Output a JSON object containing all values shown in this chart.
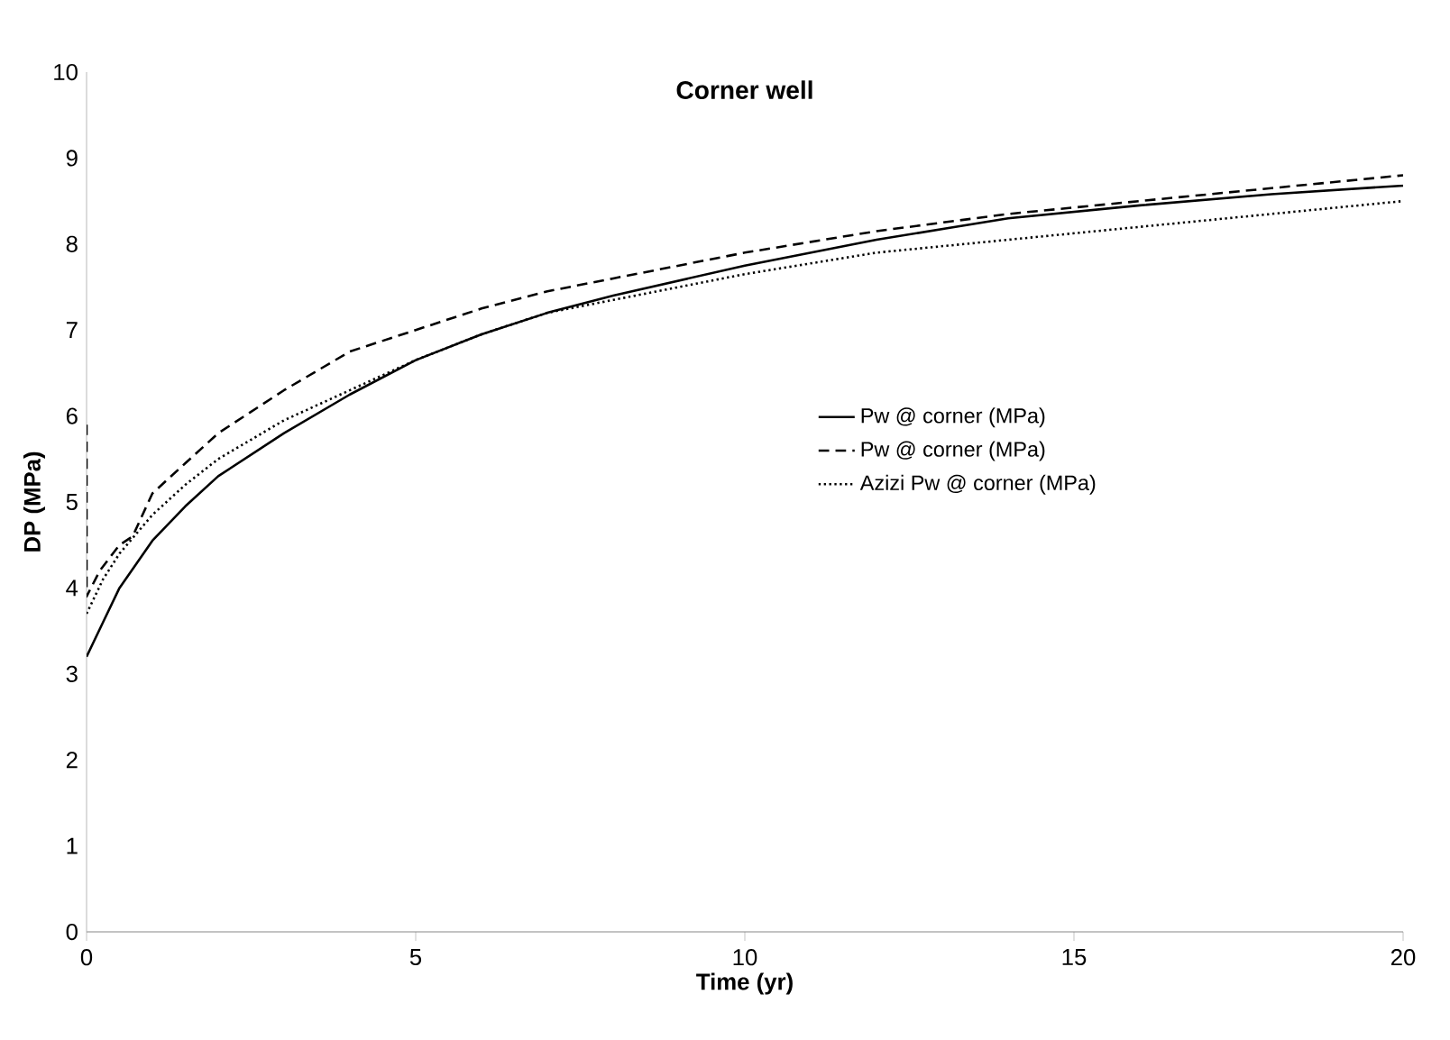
{
  "chart_data": {
    "type": "line",
    "title": "Corner well",
    "xlabel": "Time (yr)",
    "ylabel": "DP (MPa)",
    "xlim": [
      0,
      20
    ],
    "ylim": [
      0,
      10
    ],
    "xticks": [
      0,
      5,
      10,
      15,
      20
    ],
    "yticks": [
      0,
      1,
      2,
      3,
      4,
      5,
      6,
      7,
      8,
      9,
      10
    ],
    "grid": false,
    "legend": "right",
    "marker": "none",
    "series": [
      {
        "name": "Pw @ corner (MPa)",
        "color": "#000000",
        "line_style": "solid",
        "x": [
          0,
          0.25,
          0.5,
          1,
          1.5,
          2,
          3,
          4,
          5,
          6,
          7,
          8,
          10,
          12,
          14,
          16,
          18,
          20
        ],
        "values": [
          3.2,
          3.6,
          4.0,
          4.55,
          4.95,
          5.3,
          5.8,
          6.25,
          6.65,
          6.95,
          7.2,
          7.4,
          7.75,
          8.05,
          8.3,
          8.45,
          8.58,
          8.68
        ]
      },
      {
        "name": "Pw @ corner (MPa)",
        "color": "#000000",
        "line_style": "dashed",
        "x": [
          0,
          0,
          0.2,
          0.5,
          0.7,
          1,
          1.5,
          2,
          3,
          4,
          5,
          6,
          7,
          8,
          10,
          12,
          14,
          16,
          18,
          20
        ],
        "values": [
          5.9,
          3.9,
          4.2,
          4.5,
          4.6,
          5.1,
          5.45,
          5.8,
          6.3,
          6.75,
          7.0,
          7.25,
          7.45,
          7.6,
          7.9,
          8.15,
          8.35,
          8.5,
          8.65,
          8.8
        ]
      },
      {
        "name": "Azizi Pw @ corner (MPa)",
        "color": "#000000",
        "line_style": "dotted",
        "x": [
          0,
          0.25,
          0.5,
          1,
          1.5,
          2,
          3,
          4,
          5,
          6,
          7,
          8,
          10,
          12,
          14,
          16,
          18,
          20
        ],
        "values": [
          3.7,
          4.1,
          4.4,
          4.85,
          5.2,
          5.5,
          5.95,
          6.3,
          6.65,
          6.95,
          7.2,
          7.35,
          7.65,
          7.9,
          8.05,
          8.2,
          8.35,
          8.5
        ]
      }
    ]
  }
}
